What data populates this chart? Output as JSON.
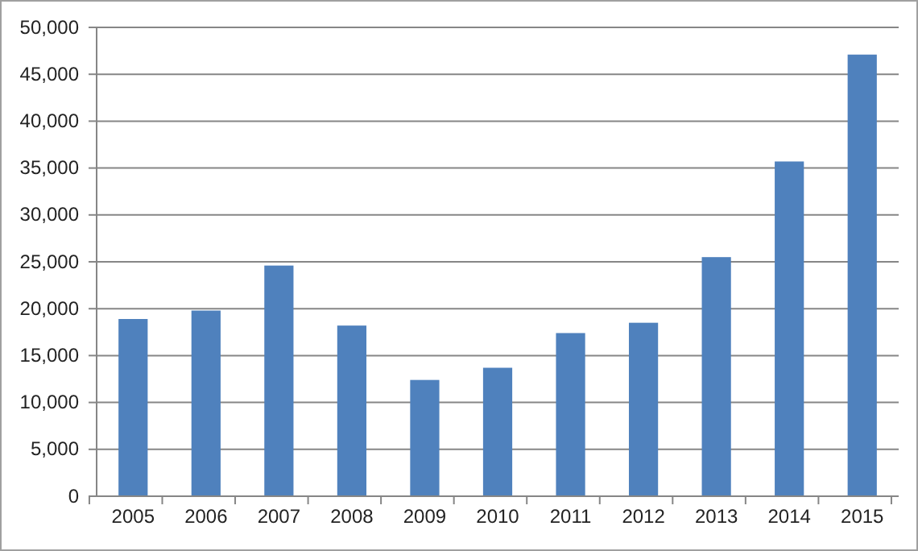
{
  "chart_data": {
    "type": "bar",
    "categories": [
      "2005",
      "2006",
      "2007",
      "2008",
      "2009",
      "2010",
      "2011",
      "2012",
      "2013",
      "2014",
      "2015"
    ],
    "series": [
      {
        "color": "#4f81bd",
        "values": [
          18900,
          19800,
          24600,
          18200,
          12400,
          13700,
          17400,
          18500,
          25500,
          35700,
          47100
        ]
      }
    ],
    "ylim": [
      0,
      50000
    ],
    "yticks": [
      {
        "value": 0,
        "label": "0"
      },
      {
        "value": 5000,
        "label": "5,000"
      },
      {
        "value": 10000,
        "label": "10,000"
      },
      {
        "value": 15000,
        "label": "15,000"
      },
      {
        "value": 20000,
        "label": "20,000"
      },
      {
        "value": 25000,
        "label": "25,000"
      },
      {
        "value": 30000,
        "label": "30,000"
      },
      {
        "value": 35000,
        "label": "35,000"
      },
      {
        "value": 40000,
        "label": "40,000"
      },
      {
        "value": 45000,
        "label": "45,000"
      },
      {
        "value": 50000,
        "label": "50,000"
      }
    ],
    "grid": "y",
    "legend": false
  }
}
